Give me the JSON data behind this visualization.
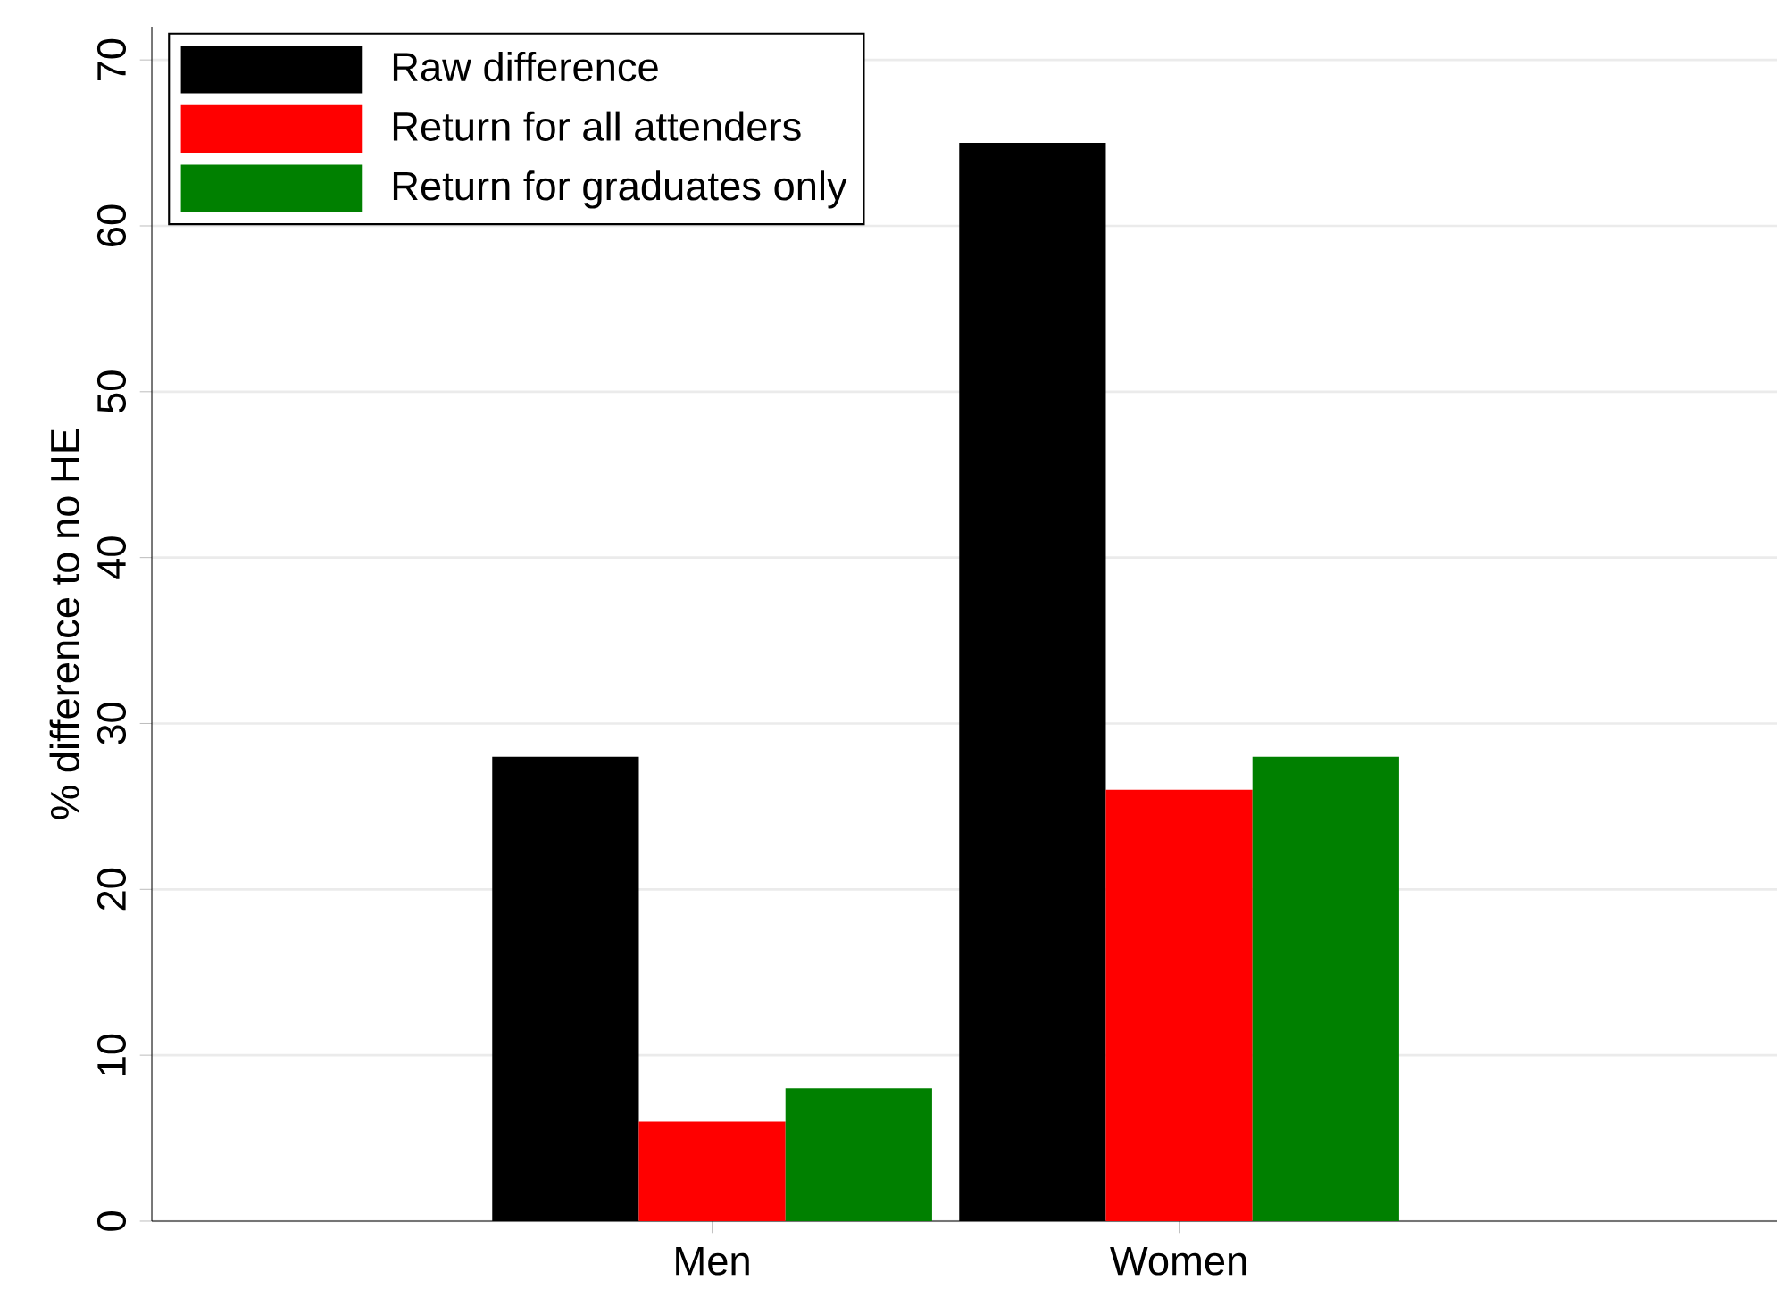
{
  "chart_data": {
    "type": "bar",
    "ylabel": "% difference to no HE",
    "categories": [
      "Men",
      "Women"
    ],
    "series": [
      {
        "name": "Raw difference",
        "color": "#000000",
        "values": [
          28,
          65
        ]
      },
      {
        "name": "Return for all attenders",
        "color": "#ff0000",
        "values": [
          6,
          26
        ]
      },
      {
        "name": "Return for graduates only",
        "color": "#008000",
        "values": [
          8,
          28
        ]
      }
    ],
    "ylim": [
      0,
      72
    ],
    "yticks": [
      0,
      10,
      20,
      30,
      40,
      50,
      60,
      70
    ],
    "grid": "y",
    "legend": "top left"
  }
}
